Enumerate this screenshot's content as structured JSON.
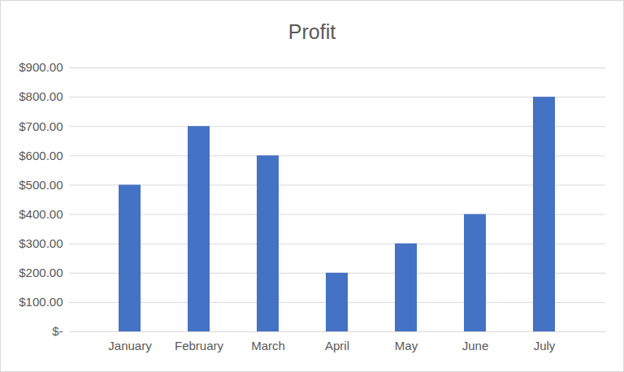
{
  "chart_data": {
    "type": "bar",
    "title": "Profit",
    "categories": [
      "January",
      "February",
      "March",
      "April",
      "May",
      "June",
      "July"
    ],
    "values": [
      500,
      700,
      600,
      200,
      300,
      400,
      800
    ],
    "color": "#4472c4",
    "ylim": [
      0,
      900
    ],
    "yticks": [
      {
        "value": 0,
        "label": "$-"
      },
      {
        "value": 100,
        "label": "$100.00"
      },
      {
        "value": 200,
        "label": "$200.00"
      },
      {
        "value": 300,
        "label": "$300.00"
      },
      {
        "value": 400,
        "label": "$400.00"
      },
      {
        "value": 500,
        "label": "$500.00"
      },
      {
        "value": 600,
        "label": "$600.00"
      },
      {
        "value": 700,
        "label": "$700.00"
      },
      {
        "value": 800,
        "label": "$800.00"
      },
      {
        "value": 900,
        "label": "$900.00"
      }
    ],
    "grid": true
  }
}
